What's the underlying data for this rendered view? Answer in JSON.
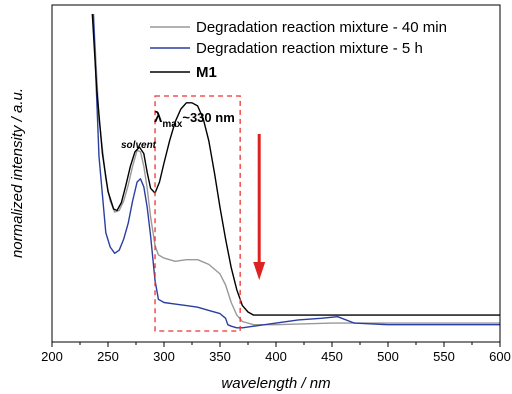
{
  "chart_data": {
    "type": "line",
    "xlabel": "wavelength / nm",
    "ylabel": "normalized intensity / a.u.",
    "xlim": [
      200,
      600
    ],
    "xticks": [
      "200",
      "250",
      "300",
      "350",
      "400",
      "450",
      "500",
      "550",
      "600"
    ],
    "ylim": [
      0,
      1
    ],
    "yticks_labeled": false,
    "grid": false,
    "legend_position": "top-right",
    "series": [
      {
        "name": "Degradation reaction mixture - 40 min",
        "color": "#999999",
        "x": [
          237,
          242,
          248,
          252,
          256,
          260,
          264,
          268,
          272,
          276,
          279,
          282,
          285,
          288,
          292,
          295,
          300,
          310,
          320,
          330,
          340,
          350,
          355,
          360,
          365,
          370,
          380,
          400,
          450,
          500,
          550,
          600
        ],
        "y": [
          1.0,
          0.67,
          0.48,
          0.41,
          0.375,
          0.38,
          0.41,
          0.46,
          0.52,
          0.57,
          0.565,
          0.52,
          0.45,
          0.36,
          0.27,
          0.24,
          0.23,
          0.22,
          0.225,
          0.225,
          0.21,
          0.18,
          0.145,
          0.09,
          0.05,
          0.03,
          0.02,
          0.02,
          0.025,
          0.025,
          0.025,
          0.025
        ]
      },
      {
        "name": "Degradation reaction mixture - 5 h",
        "color": "#2a3f9e",
        "x": [
          237,
          242,
          248,
          252,
          256,
          260,
          264,
          268,
          272,
          276,
          279,
          282,
          285,
          288,
          292,
          295,
          300,
          310,
          320,
          330,
          340,
          350,
          355,
          357,
          360,
          365,
          370,
          380,
          400,
          420,
          440,
          455,
          470,
          500,
          550,
          600
        ],
        "y": [
          1.0,
          0.55,
          0.31,
          0.265,
          0.245,
          0.255,
          0.29,
          0.34,
          0.41,
          0.47,
          0.48,
          0.455,
          0.39,
          0.3,
          0.16,
          0.1,
          0.09,
          0.085,
          0.08,
          0.075,
          0.065,
          0.055,
          0.04,
          0.02,
          0.015,
          0.01,
          0.01,
          0.015,
          0.025,
          0.035,
          0.04,
          0.045,
          0.025,
          0.02,
          0.02,
          0.02
        ]
      },
      {
        "name": "M1",
        "color": "#000000",
        "x": [
          236,
          240,
          245,
          250,
          255,
          258,
          262,
          266,
          270,
          274,
          278,
          282,
          285,
          288,
          292,
          296,
          300,
          305,
          310,
          315,
          320,
          325,
          330,
          335,
          340,
          345,
          350,
          355,
          360,
          365,
          370,
          375,
          380,
          400,
          450,
          500,
          550,
          600
        ],
        "y": [
          1.0,
          0.76,
          0.56,
          0.44,
          0.385,
          0.38,
          0.405,
          0.46,
          0.52,
          0.565,
          0.58,
          0.56,
          0.5,
          0.45,
          0.435,
          0.47,
          0.53,
          0.6,
          0.66,
          0.7,
          0.72,
          0.72,
          0.71,
          0.67,
          0.6,
          0.5,
          0.39,
          0.29,
          0.2,
          0.13,
          0.08,
          0.06,
          0.05,
          0.05,
          0.05,
          0.05,
          0.05,
          0.05
        ]
      }
    ],
    "annotations": {
      "solvent_label": "solvent",
      "lambda_symbol": "λ",
      "lambda_subscript": "max",
      "lambda_value": "~330 nm",
      "box_x_range": [
        292,
        368
      ],
      "box_color": "#ee3333",
      "arrow_x": 385,
      "arrow_color": "#dd2222"
    }
  }
}
